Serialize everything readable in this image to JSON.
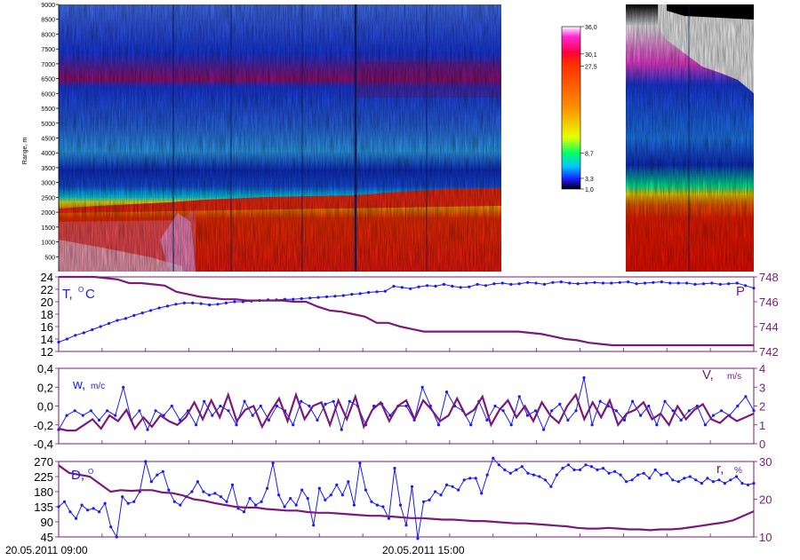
{
  "colors": {
    "blue_series": "#1a1aff",
    "purple_series": "#7a1a7a",
    "axis": "#7a1a7a",
    "scale": [
      "#000000",
      "#1a1aff",
      "#00c8ff",
      "#00ff66",
      "#e6ff00",
      "#ffb000",
      "#ff2a00",
      "#ff0040",
      "#ff2ad4",
      "#ffffff"
    ]
  },
  "lidar": {
    "ylabel": "Range, m",
    "y_ticks": [
      "9000",
      "8500",
      "8000",
      "7500",
      "7000",
      "6500",
      "6000",
      "5500",
      "5000",
      "4500",
      "4000",
      "3500",
      "3000",
      "2500",
      "2000",
      "1500",
      "1000",
      "500"
    ],
    "ylim": [
      0,
      9000
    ],
    "colorbar_labels": [
      "36,0",
      "30,1",
      "27,5",
      "8,7",
      "3,3",
      "1,0"
    ],
    "colorbar_values": [
      36.0,
      30.1,
      27.5,
      8.7,
      3.3,
      1.0
    ]
  },
  "x_labels": [
    "20.05.2011 09:00",
    "20.05.2011 15:00"
  ],
  "chart_data": [
    {
      "type": "line",
      "panel": "temperature-pressure",
      "left_label_main": "T,",
      "left_label_sup": "O",
      "left_label_end": "C",
      "right_label": "P",
      "left_ticks": [
        "24",
        "22",
        "20",
        "18",
        "16",
        "14",
        "12"
      ],
      "left_ylim": [
        12,
        24
      ],
      "right_ticks": [
        "748",
        "746",
        "744",
        "742"
      ],
      "right_ylim": [
        742,
        748
      ],
      "series": [
        {
          "axis": "left",
          "marker": "dots",
          "values": [
            13.5,
            14,
            14.6,
            15,
            15.5,
            16,
            16.5,
            17,
            17.3,
            17.8,
            18.2,
            18.6,
            19,
            19.3,
            19.6,
            19.8,
            19.8,
            19.7,
            19.5,
            19.6,
            19.8,
            20,
            20,
            20.1,
            20.2,
            20.3,
            20.3,
            20.4,
            20.4,
            20.5,
            20.6,
            20.7,
            20.8,
            20.9,
            21,
            21.2,
            21.3,
            21.5,
            21.6,
            21.7,
            22.5,
            22.3,
            22.1,
            22.4,
            22.6,
            22.5,
            22.8,
            22.5,
            22.3,
            22.4,
            22.8,
            22.6,
            22.9,
            23,
            22.8,
            22.9,
            23.1,
            23,
            22.8,
            23.1,
            23.2,
            23,
            22.9,
            23,
            23.1,
            23,
            23,
            23.1,
            23.2,
            22.9,
            23,
            23.1,
            23.2,
            23,
            23,
            23,
            22.8,
            22.9,
            23,
            22.8,
            22.9,
            23,
            22.6,
            22.2
          ]
        },
        {
          "axis": "right",
          "marker": "none",
          "values": [
            748,
            748,
            748,
            748,
            747.9,
            747.8,
            747.5,
            747.5,
            747.4,
            747.3,
            746.8,
            746.6,
            746.4,
            746.3,
            746.2,
            746.2,
            746.1,
            746.1,
            746.1,
            746.1,
            746,
            746,
            745.6,
            745.3,
            745.2,
            745,
            744.8,
            744.3,
            744.3,
            744,
            743.8,
            743.6,
            743.6,
            743.6,
            743.6,
            743.6,
            743.6,
            743.6,
            743.6,
            743.6,
            743.5,
            743.4,
            743.2,
            743,
            742.9,
            742.7,
            742.6,
            742.5,
            742.5,
            742.5,
            742.5,
            742.5,
            742.5,
            742.5,
            742.5,
            742.5,
            742.5,
            742.5,
            742.5,
            742.5
          ]
        }
      ]
    },
    {
      "type": "line",
      "panel": "vertical-horizontal-wind",
      "left_label_main": "w,",
      "left_label_unit": "m/c",
      "right_label_main": "V,",
      "right_label_unit": "m/s",
      "left_ticks": [
        "0,4",
        "0,2",
        "0,0",
        "-0,2",
        "-0,4"
      ],
      "left_ylim": [
        -0.4,
        0.4
      ],
      "right_ticks": [
        "4",
        "3",
        "2",
        "1",
        "0"
      ],
      "right_ylim": [
        0,
        4
      ],
      "series": [
        {
          "axis": "left",
          "marker": "dots",
          "values": [
            -0.25,
            -0.1,
            -0.05,
            -0.1,
            -0.05,
            -0.15,
            -0.05,
            -0.1,
            0.2,
            -0.15,
            -0.05,
            -0.25,
            -0.05,
            -0.1,
            0.0,
            -0.15,
            -0.05,
            -0.2,
            0.05,
            -0.1,
            0.0,
            -0.05,
            -0.2,
            0.05,
            -0.1,
            0.0,
            -0.15,
            0.0,
            -0.05,
            -0.2,
            0.05,
            0.0,
            -0.15,
            0.02,
            0.05,
            -0.25,
            0.05,
            0.0,
            -0.2,
            0.0,
            0.02,
            -0.1,
            0.0,
            0.0,
            -0.15,
            0.2,
            0.0,
            -0.2,
            0.15,
            0.0,
            -0.05,
            -0.2,
            0.05,
            -0.15,
            0.0,
            -0.05,
            -0.2,
            0.1,
            -0.1,
            -0.05,
            -0.25,
            -0.05,
            0.02,
            -0.15,
            -0.05,
            0.3,
            -0.2,
            0.05,
            0.0,
            -0.05,
            -0.15,
            0.05,
            -0.1,
            0.0,
            -0.2,
            0.05,
            -0.05,
            -0.15,
            -0.05,
            0.0,
            -0.2,
            -0.1,
            -0.05,
            -0.1,
            0.0,
            0.1,
            -0.05
          ]
        },
        {
          "axis": "right",
          "marker": "none",
          "values": [
            0.8,
            0.7,
            0.7,
            1.0,
            1.3,
            0.8,
            1.5,
            1.2,
            1.8,
            0.8,
            1.4,
            0.9,
            1.5,
            1.2,
            1.0,
            1.4,
            2.2,
            1.3,
            2.3,
            1.4,
            2.6,
            1.2,
            1.8,
            2.0,
            0.9,
            1.7,
            2.4,
            1.2,
            2.6,
            1.3,
            2.0,
            2.2,
            1.0,
            2.3,
            1.3,
            2.5,
            0.9,
            1.8,
            2.2,
            1.2,
            2.0,
            2.3,
            1.3,
            2.3,
            1.8,
            1.2,
            1.5,
            2.4,
            1.5,
            1.8,
            2.5,
            1.0,
            1.8,
            2.3,
            1.4,
            2.0,
            1.2,
            2.2,
            1.5,
            1.1,
            2.0,
            2.6,
            1.3,
            2.2,
            1.4,
            2.3,
            1.0,
            1.6,
            1.8,
            2.2,
            1.3,
            1.6,
            1.0,
            2.0,
            1.3,
            1.8,
            2.1,
            1.3,
            1.1,
            1.5,
            1.2,
            1.4,
            1.6
          ]
        }
      ]
    },
    {
      "type": "line",
      "panel": "direction-humidity",
      "left_label_main": "D,",
      "left_label_sup": "O",
      "right_label_main": "r,",
      "right_label_unit": "%",
      "left_ticks": [
        "270",
        "225",
        "180",
        "135",
        "90",
        "45"
      ],
      "left_ylim": [
        45,
        270
      ],
      "right_ticks": [
        "30",
        "20",
        "10"
      ],
      "right_ylim": [
        10,
        30
      ],
      "series": [
        {
          "axis": "left",
          "marker": "dots",
          "values": [
            135,
            150,
            120,
            100,
            140,
            125,
            130,
            120,
            145,
            75,
            45,
            165,
            145,
            150,
            180,
            270,
            210,
            230,
            240,
            185,
            150,
            140,
            165,
            180,
            210,
            180,
            170,
            175,
            165,
            150,
            200,
            130,
            120,
            160,
            140,
            150,
            190,
            265,
            170,
            135,
            160,
            140,
            185,
            160,
            80,
            190,
            155,
            170,
            200,
            170,
            210,
            140,
            265,
            185,
            150,
            140,
            135,
            100,
            250,
            140,
            80,
            195,
            40,
            150,
            155,
            180,
            170,
            200,
            195,
            185,
            215,
            220,
            220,
            175,
            230,
            280,
            260,
            245,
            235,
            245,
            255,
            235,
            230,
            225,
            215,
            195,
            230,
            250,
            260,
            245,
            245,
            260,
            255,
            245,
            250,
            235,
            240,
            230,
            210,
            215,
            230,
            235,
            220,
            245,
            230,
            235,
            215,
            210,
            220,
            225,
            215,
            205,
            220,
            210,
            215,
            205,
            215,
            225,
            205,
            200,
            205
          ]
        },
        {
          "axis": "right",
          "marker": "none",
          "values": [
            29,
            27,
            26.5,
            26,
            24,
            22,
            22.4,
            22.2,
            22.4,
            22.4,
            21.8,
            21.6,
            21,
            20,
            19.6,
            19,
            18.5,
            18,
            17.8,
            17.8,
            17.4,
            17.2,
            17,
            17,
            16.6,
            16.4,
            16.4,
            16.2,
            16,
            15.8,
            15.6,
            15.6,
            15.4,
            15.2,
            15,
            15,
            14.8,
            14.6,
            14.6,
            14.4,
            14.2,
            14.2,
            14,
            13.8,
            13.6,
            13.6,
            13.4,
            13.2,
            13,
            12.8,
            12.4,
            12.2,
            12.2,
            12.4,
            12.2,
            12,
            12,
            11.8,
            12,
            12,
            12.2,
            12.6,
            13,
            13.4,
            13.8,
            14.4,
            15.6,
            16.8
          ]
        }
      ]
    }
  ]
}
